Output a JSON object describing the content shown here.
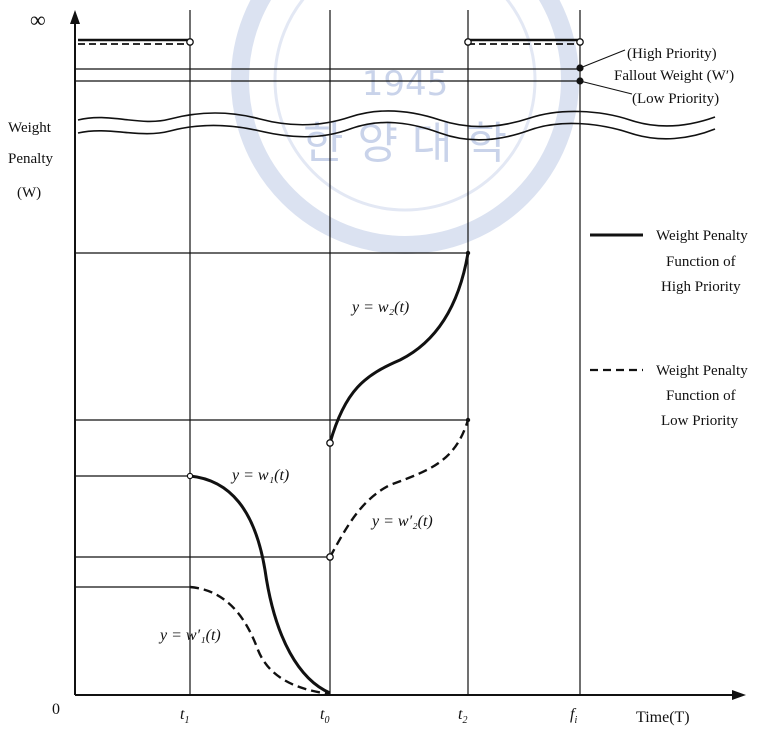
{
  "axes": {
    "y_infinity": "∞",
    "y_label_line1": "Weight",
    "y_label_line2": "Penalty",
    "y_label_line3": "(W)",
    "origin": "0",
    "x_label": "Time(T)"
  },
  "ticks": [
    {
      "main": "t",
      "sub": "1"
    },
    {
      "main": "t",
      "sub": "0"
    },
    {
      "main": "t",
      "sub": "2"
    },
    {
      "main": "f",
      "sub": "i"
    }
  ],
  "fallout": {
    "high": "(High Priority)",
    "label": "Fallout Weight (W′)",
    "low": "(Low Priority)"
  },
  "curves": {
    "w1": "y = w₁(t)",
    "w1_prime": "y = w′₁(t)",
    "w2": "y = w₂(t)",
    "w2_prime": "y = w′₂(t)"
  },
  "legend": {
    "high_line1": "Weight Penalty",
    "high_line2": "Function of",
    "high_line3": "High Priority",
    "low_line1": "Weight Penalty",
    "low_line2": "Function of",
    "low_line3": "Low Priority"
  },
  "watermark": {
    "year": "1945",
    "characters": "한 양 대 학"
  },
  "colors": {
    "ink": "#111111",
    "watermark": "#c9d3ea"
  }
}
